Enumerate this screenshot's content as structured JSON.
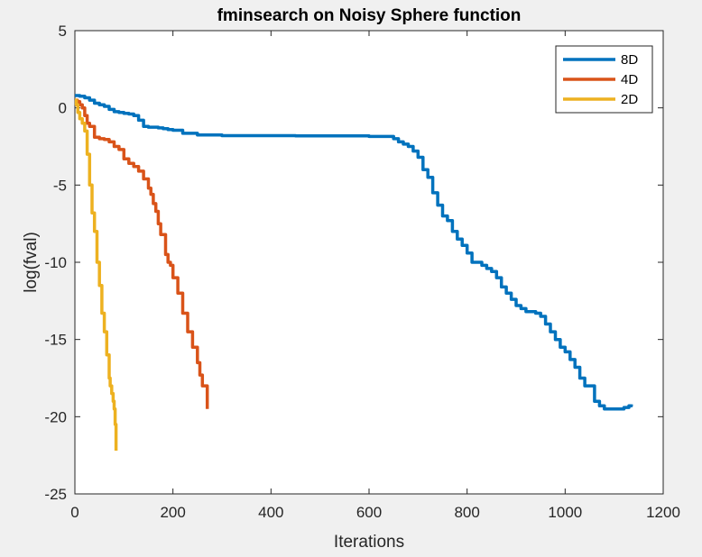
{
  "chart_data": {
    "type": "line",
    "title": "fminsearch on Noisy Sphere function",
    "xlabel": "Iterations",
    "ylabel": "log(fval)",
    "xlim": [
      0,
      1200
    ],
    "ylim": [
      -25,
      5
    ],
    "xticks": [
      "0",
      "200",
      "400",
      "600",
      "800",
      "1000",
      "1200"
    ],
    "yticks": [
      "5",
      "0",
      "-5",
      "-10",
      "-15",
      "-20",
      "-25"
    ],
    "grid": false,
    "legend_position": "top-right",
    "series": [
      {
        "name": "8D",
        "color": "#0072BD",
        "x": [
          0,
          10,
          20,
          30,
          40,
          50,
          60,
          70,
          80,
          90,
          100,
          110,
          120,
          130,
          140,
          150,
          160,
          170,
          180,
          190,
          200,
          220,
          250,
          300,
          350,
          400,
          450,
          500,
          550,
          600,
          630,
          650,
          660,
          670,
          680,
          690,
          700,
          710,
          720,
          730,
          740,
          750,
          760,
          770,
          780,
          790,
          800,
          810,
          820,
          830,
          840,
          850,
          860,
          870,
          880,
          890,
          900,
          910,
          920,
          930,
          940,
          950,
          960,
          970,
          980,
          990,
          1000,
          1010,
          1020,
          1030,
          1040,
          1050,
          1060,
          1070,
          1080,
          1090,
          1100,
          1110,
          1120,
          1130,
          1135
        ],
        "y": [
          0.8,
          0.75,
          0.65,
          0.5,
          0.3,
          0.2,
          0.1,
          -0.1,
          -0.25,
          -0.3,
          -0.35,
          -0.4,
          -0.5,
          -0.8,
          -1.2,
          -1.25,
          -1.25,
          -1.3,
          -1.35,
          -1.4,
          -1.45,
          -1.65,
          -1.75,
          -1.8,
          -1.8,
          -1.8,
          -1.82,
          -1.82,
          -1.82,
          -1.85,
          -1.85,
          -2.0,
          -2.2,
          -2.35,
          -2.5,
          -2.8,
          -3.2,
          -4.0,
          -4.5,
          -5.5,
          -6.3,
          -7.0,
          -7.3,
          -8.0,
          -8.5,
          -8.9,
          -9.4,
          -10.0,
          -10.0,
          -10.2,
          -10.4,
          -10.6,
          -11.0,
          -11.6,
          -12.0,
          -12.4,
          -12.8,
          -13.0,
          -13.2,
          -13.2,
          -13.3,
          -13.5,
          -14.0,
          -14.5,
          -15.0,
          -15.5,
          -15.8,
          -16.3,
          -16.8,
          -17.5,
          -18.0,
          -18.0,
          -19.0,
          -19.3,
          -19.5,
          -19.5,
          -19.5,
          -19.5,
          -19.4,
          -19.3,
          -19.2
        ]
      },
      {
        "name": "4D",
        "color": "#D95319",
        "x": [
          0,
          5,
          10,
          15,
          20,
          25,
          30,
          40,
          50,
          60,
          70,
          80,
          90,
          100,
          110,
          120,
          130,
          140,
          150,
          155,
          160,
          165,
          170,
          175,
          180,
          185,
          190,
          195,
          200,
          210,
          220,
          230,
          240,
          250,
          255,
          260,
          265,
          270
        ],
        "y": [
          0.5,
          0.4,
          0.2,
          0.0,
          -0.5,
          -1.0,
          -1.2,
          -1.9,
          -2.0,
          -2.05,
          -2.2,
          -2.5,
          -2.7,
          -3.3,
          -3.6,
          -3.8,
          -4.1,
          -4.6,
          -5.2,
          -5.6,
          -6.2,
          -6.7,
          -7.5,
          -8.2,
          -8.2,
          -9.5,
          -10.0,
          -10.2,
          -11.0,
          -12.0,
          -13.3,
          -14.5,
          -15.5,
          -16.5,
          -17.3,
          -18.0,
          -18.0,
          -19.5
        ]
      },
      {
        "name": "2D",
        "color": "#EDB120",
        "x": [
          0,
          3,
          6,
          10,
          15,
          20,
          25,
          30,
          35,
          40,
          45,
          50,
          55,
          60,
          65,
          70,
          72,
          75,
          78,
          80,
          82,
          84
        ],
        "y": [
          0.5,
          0.2,
          -0.3,
          -0.7,
          -1.0,
          -1.5,
          -3.0,
          -5.0,
          -6.8,
          -8.0,
          -10.0,
          -11.5,
          -13.3,
          -14.5,
          -16.0,
          -17.5,
          -18.0,
          -18.5,
          -19.0,
          -19.5,
          -20.5,
          -22.2
        ]
      }
    ]
  }
}
